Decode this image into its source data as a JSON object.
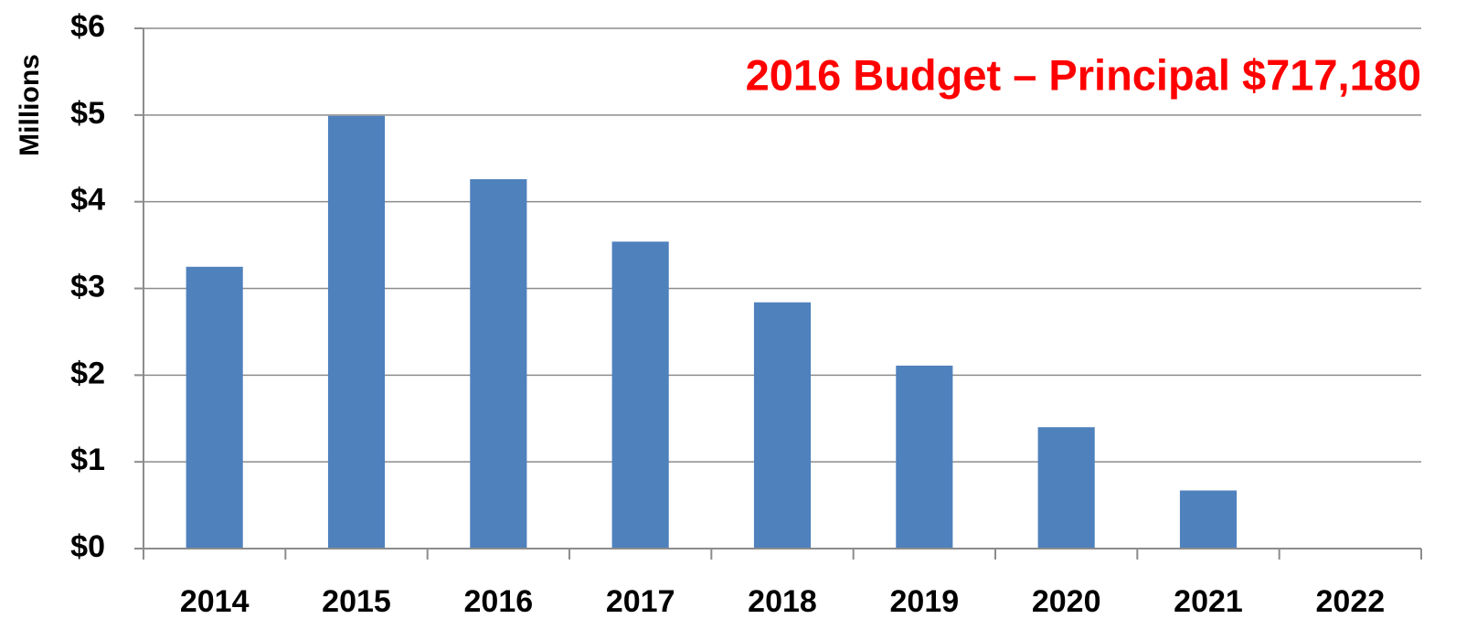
{
  "chart_data": {
    "type": "bar",
    "annotation": "2016 Budget – Principal $717,180",
    "y_label": "Millions",
    "categories": [
      "2014",
      "2015",
      "2016",
      "2017",
      "2018",
      "2019",
      "2020",
      "2021",
      "2022"
    ],
    "values": [
      3.25,
      4.99,
      4.26,
      3.54,
      2.84,
      2.11,
      1.4,
      0.67,
      0
    ],
    "color": "#4f81bd",
    "ylim": [
      0,
      6
    ],
    "yticks": [
      {
        "value": 0,
        "label": "$0"
      },
      {
        "value": 1,
        "label": "$1"
      },
      {
        "value": 2,
        "label": "$2"
      },
      {
        "value": 3,
        "label": "$3"
      },
      {
        "value": 4,
        "label": "$4"
      },
      {
        "value": 5,
        "label": "$5"
      },
      {
        "value": 6,
        "label": "$6"
      }
    ],
    "grid": true
  }
}
